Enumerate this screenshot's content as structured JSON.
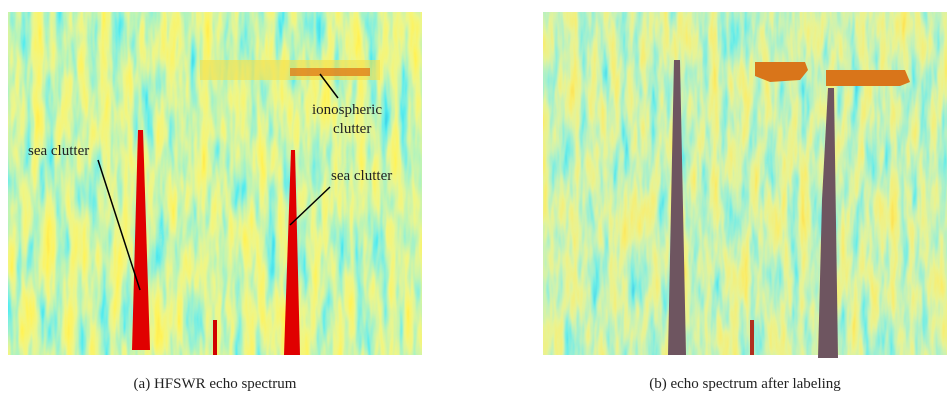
{
  "panels": [
    {
      "caption": "(a) HFSWR echo spectrum",
      "annotations": [
        "ionospheric",
        "clutter",
        "sea clutter",
        "sea clutter"
      ]
    },
    {
      "caption": "(b) echo spectrum after labeling"
    }
  ]
}
